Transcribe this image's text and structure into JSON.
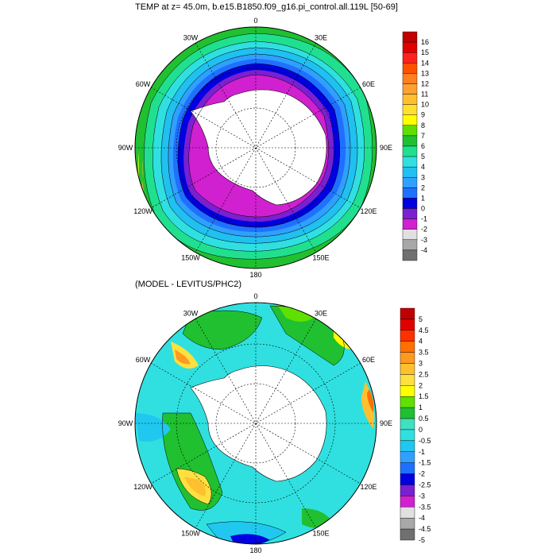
{
  "panel1": {
    "title": "TEMP at z=  45.0m, b.e15.B1850.f09_g16.pi_control.all.119L [50-69]",
    "longitude_labels": [
      "0",
      "30E",
      "60E",
      "90E",
      "120E",
      "150E",
      "180",
      "150W",
      "120W",
      "90W",
      "60W",
      "30W"
    ],
    "colorbar": {
      "labels": [
        "16",
        "15",
        "14",
        "13",
        "12",
        "11",
        "10",
        "9",
        "8",
        "7",
        "6",
        "5",
        "4",
        "3",
        "2",
        "1",
        "0",
        "-1",
        "-2",
        "-3",
        "-4"
      ],
      "colors": [
        "#c00000",
        "#e00000",
        "#ff2020",
        "#ff5000",
        "#ff8020",
        "#ffa030",
        "#ffc030",
        "#ffe030",
        "#ffff00",
        "#60e000",
        "#20c030",
        "#20e090",
        "#30e0e0",
        "#20c0f0",
        "#30a0ff",
        "#2070ff",
        "#0000e0",
        "#7a20d0",
        "#d020d0",
        "#e0e0e0",
        "#a8a8a8",
        "#707070"
      ]
    }
  },
  "panel2": {
    "title": "(MODEL - LEVITUS/PHC2)",
    "longitude_labels": [
      "0",
      "30E",
      "60E",
      "90E",
      "120E",
      "150E",
      "180",
      "150W",
      "120W",
      "90W",
      "60W",
      "30W"
    ],
    "colorbar": {
      "labels": [
        "5",
        "4.5",
        "4",
        "3.5",
        "3",
        "2.5",
        "2",
        "1.5",
        "1",
        "0.5",
        "0",
        "-0.5",
        "-1",
        "-1.5",
        "-2",
        "-2.5",
        "-3",
        "-3.5",
        "-4",
        "-4.5",
        "-5"
      ],
      "colors": [
        "#c00000",
        "#e00000",
        "#ff3000",
        "#ff7000",
        "#ff9a20",
        "#ffc030",
        "#ffe040",
        "#ffff00",
        "#60e000",
        "#20c030",
        "#40e0c0",
        "#30e0e0",
        "#20c8f0",
        "#30a0ff",
        "#2070ff",
        "#0000e0",
        "#7a20d0",
        "#d020d0",
        "#e0e0e0",
        "#a8a8a8",
        "#707070"
      ]
    }
  }
}
